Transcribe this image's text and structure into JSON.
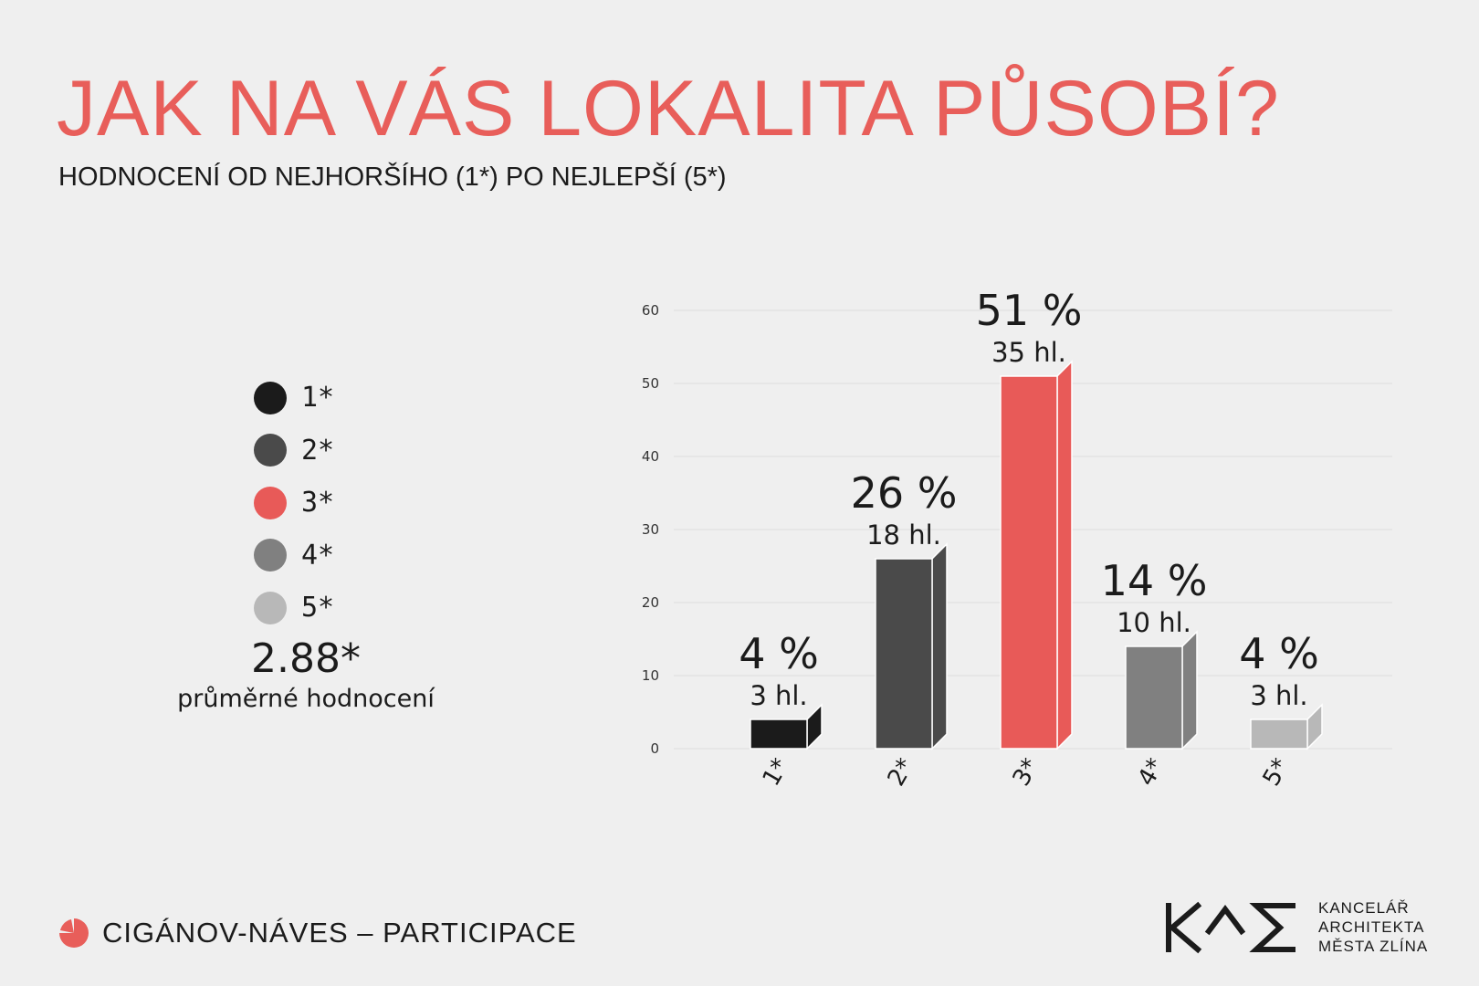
{
  "header": {
    "title": "JAK NA VÁS LOKALITA PŮSOBÍ?",
    "subtitle": "HODNOCENÍ OD NEJHORŠÍHO (1*) PO NEJLEPŠÍ (5*)"
  },
  "legend": {
    "items": [
      {
        "label": "1*",
        "color": "#1b1b1b"
      },
      {
        "label": "2*",
        "color": "#4a4a4a"
      },
      {
        "label": "3*",
        "color": "#e85a58"
      },
      {
        "label": "4*",
        "color": "#808080"
      },
      {
        "label": "5*",
        "color": "#b8b8b8"
      }
    ]
  },
  "average": {
    "value": "2.88*",
    "label": "průměrné hodnocení"
  },
  "chart_data": {
    "type": "bar",
    "categories": [
      "1*",
      "2*",
      "3*",
      "4*",
      "5*"
    ],
    "values": [
      4,
      26,
      51,
      14,
      4
    ],
    "votes": [
      3,
      18,
      35,
      10,
      3
    ],
    "percent_labels": [
      "4 %",
      "26 %",
      "51 %",
      "14 %",
      "4 %"
    ],
    "vote_labels": [
      "3 hl.",
      "18 hl.",
      "35 hl.",
      "10 hl.",
      "3 hl."
    ],
    "colors": [
      "#1b1b1b",
      "#4a4a4a",
      "#e85a58",
      "#808080",
      "#b8b8b8"
    ],
    "ylim": [
      0,
      60
    ],
    "yticks": [
      "0",
      "10",
      "20",
      "30",
      "40",
      "50",
      "60"
    ],
    "grid": true
  },
  "footer": {
    "project": "CIGÁNOV-NÁVES – PARTICIPACE",
    "accent_color": "#e85e5a",
    "icon": "pie-icon"
  },
  "logo": {
    "line1": "KANCELÁŘ",
    "line2": "ARCHITEKTA",
    "line3": "MĚSTA ZLÍNA"
  }
}
